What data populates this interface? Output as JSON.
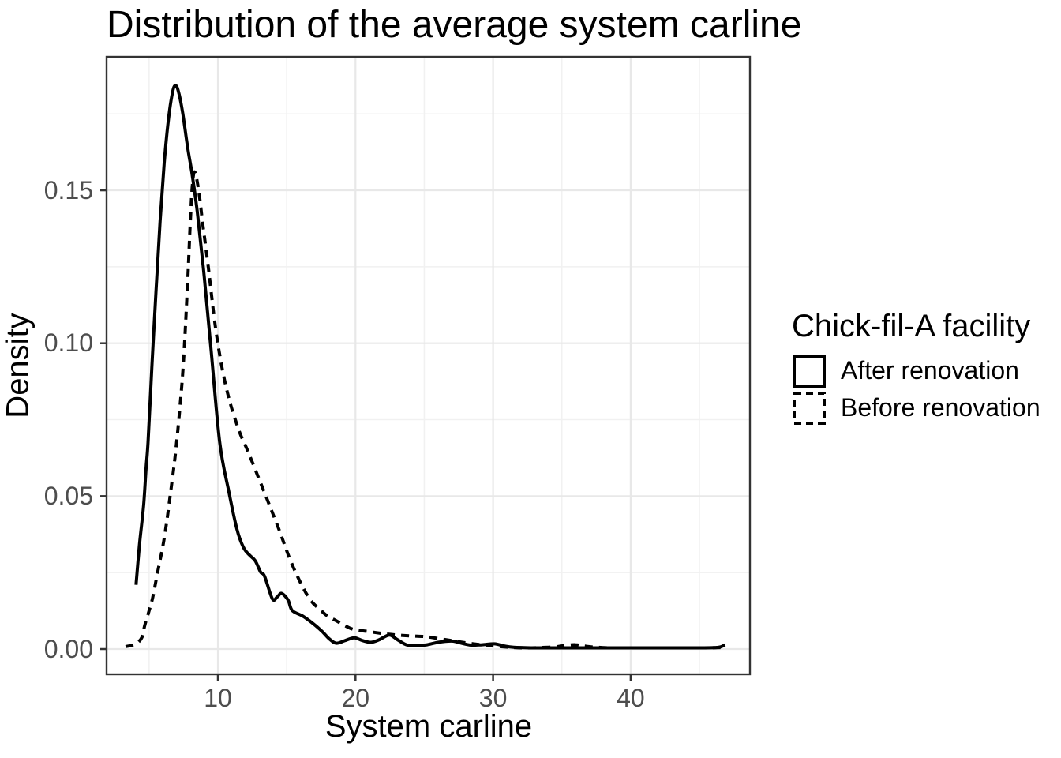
{
  "title": "Distribution of the average system carline",
  "legend": {
    "title": "Chick-fil-A facility",
    "entries": [
      {
        "label": "After renovation",
        "linetype": "solid"
      },
      {
        "label": "Before renovation",
        "linetype": "dashed"
      }
    ]
  },
  "chart_data": {
    "type": "line",
    "subtype": "density",
    "title": "Distribution of the average system carline",
    "xlabel": "System carline",
    "ylabel": "Density",
    "xlim": [
      1.9,
      48.7
    ],
    "ylim": [
      -0.0083,
      0.1936
    ],
    "x_ticks": [
      10,
      20,
      30,
      40
    ],
    "x_minor_ticks": [
      5,
      15,
      25,
      35,
      45
    ],
    "y_ticks": [
      {
        "value": 0.0,
        "label": "0.00"
      },
      {
        "value": 0.05,
        "label": "0.05"
      },
      {
        "value": 0.1,
        "label": "0.10"
      },
      {
        "value": 0.15,
        "label": "0.15"
      }
    ],
    "y_minor_ticks": [
      0.025,
      0.075,
      0.125,
      0.175
    ],
    "grid": "major+minor",
    "legend_position": "right",
    "series": [
      {
        "name": "After renovation",
        "linetype": "solid",
        "color": "#000000",
        "points": [
          [
            4.05,
            0.021
          ],
          [
            4.3,
            0.034
          ],
          [
            4.6,
            0.047
          ],
          [
            4.78,
            0.0591
          ],
          [
            4.92,
            0.0676
          ],
          [
            5.2,
            0.092
          ],
          [
            5.5,
            0.117
          ],
          [
            5.8,
            0.14
          ],
          [
            6.1,
            0.159
          ],
          [
            6.4,
            0.173
          ],
          [
            6.7,
            0.182
          ],
          [
            6.92,
            0.1843
          ],
          [
            7.15,
            0.182
          ],
          [
            7.45,
            0.175
          ],
          [
            7.8,
            0.164
          ],
          [
            8.1,
            0.156
          ],
          [
            8.5,
            0.143
          ],
          [
            9.0,
            0.122
          ],
          [
            9.5,
            0.098
          ],
          [
            10.13,
            0.0676
          ],
          [
            10.8,
            0.0514
          ],
          [
            11.38,
            0.0392
          ],
          [
            11.85,
            0.0333
          ],
          [
            12.3,
            0.0307
          ],
          [
            12.71,
            0.0289
          ],
          [
            13.1,
            0.0252
          ],
          [
            13.39,
            0.0238
          ],
          [
            13.96,
            0.0164
          ],
          [
            14.3,
            0.017
          ],
          [
            14.63,
            0.0182
          ],
          [
            15.1,
            0.016
          ],
          [
            15.4,
            0.0126
          ],
          [
            16.16,
            0.0108
          ],
          [
            16.93,
            0.0083
          ],
          [
            17.59,
            0.0057
          ],
          [
            18.1,
            0.0033
          ],
          [
            18.6,
            0.0019
          ],
          [
            19.2,
            0.0027
          ],
          [
            19.9,
            0.0037
          ],
          [
            20.5,
            0.0028
          ],
          [
            21.1,
            0.0022
          ],
          [
            21.7,
            0.003
          ],
          [
            22.45,
            0.0046
          ],
          [
            23.0,
            0.0032
          ],
          [
            23.7,
            0.0014
          ],
          [
            24.4,
            0.0012
          ],
          [
            25.2,
            0.0014
          ],
          [
            26.0,
            0.0022
          ],
          [
            27.0,
            0.0026
          ],
          [
            27.8,
            0.0018
          ],
          [
            28.4,
            0.0013
          ],
          [
            29.2,
            0.0014
          ],
          [
            30.1,
            0.0017
          ],
          [
            30.8,
            0.001
          ],
          [
            31.5,
            0.0006
          ],
          [
            33,
            0.0004
          ],
          [
            35,
            0.0004
          ],
          [
            37,
            0.0004
          ],
          [
            39,
            0.0004
          ],
          [
            41,
            0.0004
          ],
          [
            43,
            0.0004
          ],
          [
            45,
            0.0004
          ],
          [
            46.2,
            0.0005
          ],
          [
            46.6,
            0.0008
          ],
          [
            46.85,
            0.0014
          ]
        ]
      },
      {
        "name": "Before renovation",
        "linetype": "dashed",
        "color": "#000000",
        "points": [
          [
            3.3,
            0.0008
          ],
          [
            3.7,
            0.0012
          ],
          [
            4.1,
            0.0018
          ],
          [
            4.5,
            0.004
          ],
          [
            4.68,
            0.0077
          ],
          [
            5.0,
            0.0125
          ],
          [
            5.26,
            0.0168
          ],
          [
            5.64,
            0.0256
          ],
          [
            6.02,
            0.0341
          ],
          [
            6.31,
            0.0426
          ],
          [
            6.59,
            0.0522
          ],
          [
            6.88,
            0.0625
          ],
          [
            7.2,
            0.077
          ],
          [
            7.5,
            0.094
          ],
          [
            7.8,
            0.12
          ],
          [
            8.0,
            0.14
          ],
          [
            8.15,
            0.152
          ],
          [
            8.32,
            0.156
          ],
          [
            8.6,
            0.15
          ],
          [
            8.9,
            0.139
          ],
          [
            9.3,
            0.125
          ],
          [
            9.8,
            0.106
          ],
          [
            10.3,
            0.092
          ],
          [
            10.8,
            0.082
          ],
          [
            11.3,
            0.0745
          ],
          [
            11.7,
            0.0695
          ],
          [
            12.14,
            0.0651
          ],
          [
            12.91,
            0.0565
          ],
          [
            13.67,
            0.0479
          ],
          [
            14.43,
            0.0392
          ],
          [
            15.2,
            0.0298
          ],
          [
            15.97,
            0.022
          ],
          [
            16.73,
            0.016
          ],
          [
            17.5,
            0.0126
          ],
          [
            17.9,
            0.011
          ],
          [
            18.5,
            0.0095
          ],
          [
            19.1,
            0.008
          ],
          [
            19.8,
            0.0065
          ],
          [
            21.0,
            0.0057
          ],
          [
            22.3,
            0.0049
          ],
          [
            23.0,
            0.0046
          ],
          [
            24.0,
            0.0043
          ],
          [
            25.0,
            0.0041
          ],
          [
            25.8,
            0.0036
          ],
          [
            26.5,
            0.0031
          ],
          [
            27.5,
            0.0024
          ],
          [
            28.4,
            0.0018
          ],
          [
            29.2,
            0.0014
          ],
          [
            30.0,
            0.001
          ],
          [
            31.5,
            0.0005
          ],
          [
            32.5,
            0.0004
          ],
          [
            33.5,
            0.0005
          ],
          [
            34.5,
            0.0007
          ],
          [
            35.3,
            0.0012
          ],
          [
            36.0,
            0.0014
          ],
          [
            36.6,
            0.001
          ],
          [
            37.5,
            0.0006
          ],
          [
            38.5,
            0.0004
          ],
          [
            40,
            0.0004
          ],
          [
            42,
            0.0004
          ],
          [
            44,
            0.0004
          ],
          [
            45.5,
            0.0004
          ],
          [
            46.6,
            0.0005
          ]
        ]
      }
    ]
  },
  "colors": {
    "line": "#000000",
    "tick_label": "#4d4d4d",
    "axis_text": "#000000",
    "grid_major": "#e8e8e8",
    "grid_minor": "#f1f1f1",
    "panel_border": "#333333",
    "tick_mark": "#333333",
    "background": "#ffffff"
  }
}
